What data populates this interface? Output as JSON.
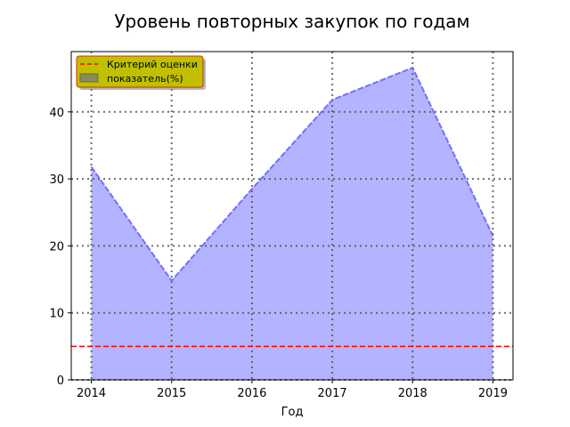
{
  "chart_data": {
    "type": "area",
    "title": "Уровень повторных закупок по годам",
    "xlabel": "Год",
    "ylabel": "",
    "x": [
      2014,
      2015,
      2016,
      2017,
      2018,
      2019
    ],
    "xlim": [
      2013.75,
      2019.25
    ],
    "ylim": [
      0,
      49
    ],
    "yticks": [
      0,
      10,
      20,
      30,
      40
    ],
    "grid": true,
    "series": [
      {
        "name": "показатель(%)",
        "values": [
          31.8,
          14.8,
          28.5,
          41.8,
          46.6,
          21.5
        ],
        "line_color": "#6666ff",
        "fill_color": "#b3b3ff"
      }
    ],
    "reference_line": {
      "name": "Критерий оценки",
      "value": 5,
      "color": "#ff0000",
      "style": "dashed"
    },
    "legend": {
      "placement": "top-left",
      "background": "#c0c000",
      "border": "#cc3300"
    }
  }
}
